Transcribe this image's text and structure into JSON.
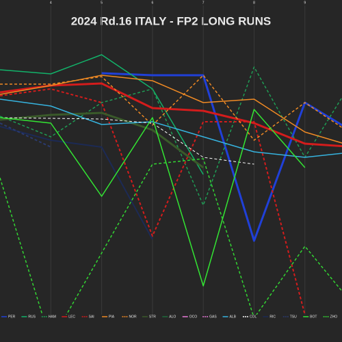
{
  "chart_data": {
    "type": "line",
    "title": "2024 Rd.16 ITALY - FP2 LONG RUNS",
    "x": [
      3,
      4,
      5,
      6,
      7,
      8,
      9,
      10
    ],
    "xlim": [
      3,
      9.73
    ],
    "xticks": [
      4,
      5,
      6,
      7,
      8,
      9
    ],
    "ylim": [
      42,
      0
    ],
    "grid": true,
    "legend": "bottom",
    "series": [
      {
        "name": "PER",
        "color": "#2040d8",
        "dash": false,
        "width": 3,
        "values": [
          null,
          null,
          6.7,
          7,
          7,
          31.2,
          11,
          15.5
        ]
      },
      {
        "name": "RUS",
        "color": "#12b36a",
        "dash": false,
        "width": 1.5,
        "values": [
          6.2,
          6.8,
          4,
          9,
          21.5,
          null,
          null,
          null
        ]
      },
      {
        "name": "HAM",
        "color": "#1f9d55",
        "dash": true,
        "width": 1.5,
        "values": [
          13,
          16,
          11,
          9,
          26,
          5.8,
          19,
          7
        ]
      },
      {
        "name": "LEC",
        "color": "#d41c1c",
        "dash": false,
        "width": 3,
        "values": [
          9.5,
          8.5,
          8.2,
          11.8,
          12.2,
          14,
          17,
          17.5
        ]
      },
      {
        "name": "SAI",
        "color": "#d41c1c",
        "dash": true,
        "width": 2,
        "values": [
          10,
          9,
          11,
          30.5,
          13.8,
          13.8,
          42,
          null
        ]
      },
      {
        "name": "PIA",
        "color": "#f08a24",
        "dash": false,
        "width": 1.5,
        "values": [
          9.8,
          8.5,
          7,
          7.8,
          11,
          10.5,
          15.3,
          17.5
        ]
      },
      {
        "name": "NOR",
        "color": "#f08a24",
        "dash": true,
        "width": 1.5,
        "values": [
          8.3,
          8.3,
          7.2,
          14.3,
          7,
          16.5,
          11,
          16
        ]
      },
      {
        "name": "STR",
        "color": "#3a5a2a",
        "dash": false,
        "width": 3,
        "values": [
          13.5,
          12.8,
          12.5,
          15,
          20.5,
          null,
          null,
          null
        ]
      },
      {
        "name": "ALO",
        "color": "#1e6b3a",
        "dash": false,
        "width": 1.5,
        "values": [
          null,
          null,
          null,
          null,
          null,
          null,
          null,
          null
        ]
      },
      {
        "name": "OCO",
        "color": "#e87ad8",
        "dash": false,
        "width": 1.5,
        "values": [
          null,
          null,
          null,
          null,
          null,
          null,
          null,
          null
        ]
      },
      {
        "name": "GAS",
        "color": "#e87ad8",
        "dash": true,
        "width": 1.5,
        "values": [
          null,
          null,
          null,
          null,
          null,
          null,
          null,
          null
        ]
      },
      {
        "name": "ALB",
        "color": "#36b4e0",
        "dash": false,
        "width": 1.5,
        "values": [
          10.5,
          11.5,
          14.2,
          13.8,
          16,
          18.2,
          19,
          18.2
        ]
      },
      {
        "name": "COL",
        "color": "#ffffff",
        "dash": true,
        "width": 1,
        "values": [
          13.2,
          13.3,
          13.4,
          14,
          19,
          20,
          null,
          null
        ]
      },
      {
        "name": "RIC",
        "color": "#1c2a55",
        "dash": false,
        "width": 2,
        "values": [
          14.5,
          16.5,
          17.5,
          31,
          null,
          null,
          null,
          null
        ]
      },
      {
        "name": "TSU",
        "color": "#2a3a6e",
        "dash": true,
        "width": 2,
        "values": [
          14,
          17.5,
          null,
          null,
          null,
          null,
          null,
          null
        ]
      },
      {
        "name": "BOT",
        "color": "#33e633",
        "dash": false,
        "width": 1.5,
        "values": [
          13.2,
          14,
          24.7,
          13.2,
          37.8,
          12,
          20.5,
          null
        ]
      },
      {
        "name": "ZHO",
        "color": "#33d633",
        "dash": true,
        "width": 1.5,
        "values": [
          22,
          46,
          33,
          20,
          19.2,
          42.5,
          32,
          41
        ]
      }
    ]
  }
}
